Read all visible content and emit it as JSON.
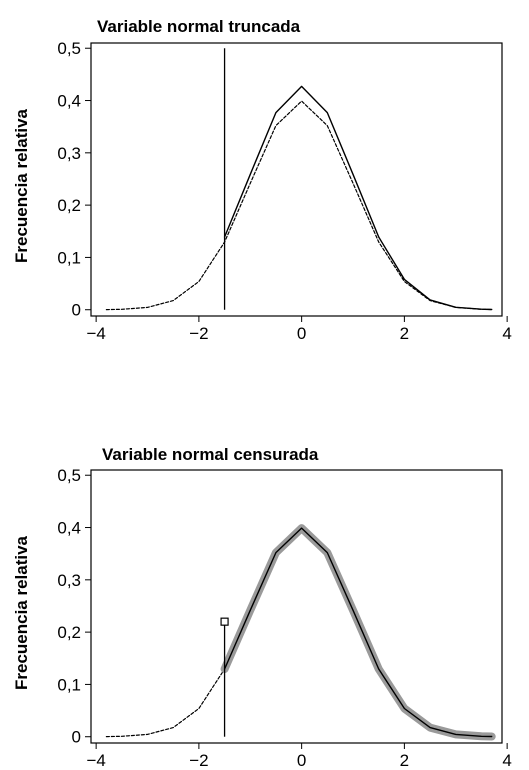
{
  "chart_data": [
    {
      "type": "line",
      "title": "Variable normal truncada",
      "ylabel": "Frecuencia relativa",
      "xlabel": "",
      "xlim": [
        -4.1,
        3.9
      ],
      "ylim": [
        -0.012,
        0.51
      ],
      "x_ticks": [
        -4,
        -2,
        0,
        2,
        4
      ],
      "x_tick_labels": [
        "−4",
        "−2",
        "0",
        "2",
        "4"
      ],
      "y_ticks": [
        0,
        0.1,
        0.2,
        0.3,
        0.4,
        0.5
      ],
      "y_tick_labels": [
        "0",
        "0,1",
        "0,2",
        "0,3",
        "0,4",
        "0,5"
      ],
      "truncation_point": -1.5,
      "series": [
        {
          "style": "dashed",
          "x": [
            -3.8,
            -3.5,
            -3.0,
            -2.5,
            -2.0,
            -1.5,
            -1.0,
            -0.5,
            0.0,
            0.5,
            1.0,
            1.5,
            2.0,
            2.5,
            3.0,
            3.5,
            3.7
          ],
          "y": [
            0.0003,
            0.0009,
            0.0044,
            0.0175,
            0.054,
            0.1295,
            0.242,
            0.352,
            0.3989,
            0.352,
            0.242,
            0.1295,
            0.054,
            0.0175,
            0.0044,
            0.0009,
            0.0004
          ]
        },
        {
          "style": "solid",
          "x": [
            -1.5,
            -1.0,
            -0.5,
            0.0,
            0.5,
            1.0,
            1.5,
            2.0,
            2.5,
            3.0,
            3.5,
            3.7
          ],
          "y": [
            0.139,
            0.259,
            0.377,
            0.427,
            0.377,
            0.259,
            0.139,
            0.058,
            0.0188,
            0.0047,
            0.001,
            0.0004
          ]
        }
      ],
      "vertical_line": {
        "x": -1.5,
        "y_from": 0,
        "y_to": 0.5
      }
    },
    {
      "type": "line",
      "title": "Variable normal censurada",
      "ylabel": "Frecuencia relativa",
      "xlabel": "",
      "xlim": [
        -4.1,
        3.9
      ],
      "ylim": [
        -0.012,
        0.51
      ],
      "x_ticks": [
        -4,
        -2,
        0,
        2,
        4
      ],
      "x_tick_labels": [
        "−4",
        "−2",
        "0",
        "2",
        "4"
      ],
      "y_ticks": [
        0,
        0.1,
        0.2,
        0.3,
        0.4,
        0.5
      ],
      "y_tick_labels": [
        "0",
        "0,1",
        "0,2",
        "0,3",
        "0,4",
        "0,5"
      ],
      "censoring_point": -1.5,
      "censored_mass": 0.22,
      "series": [
        {
          "style": "dashed",
          "x": [
            -3.8,
            -3.5,
            -3.0,
            -2.5,
            -2.0,
            -1.5
          ],
          "y": [
            0.0003,
            0.0009,
            0.0044,
            0.0175,
            0.054,
            0.1295
          ]
        },
        {
          "style": "gray band",
          "x": [
            -1.5,
            -1.0,
            -0.5,
            0.0,
            0.5,
            1.0,
            1.5,
            2.0,
            2.5,
            3.0,
            3.5,
            3.7
          ],
          "y": [
            0.1295,
            0.242,
            0.352,
            0.3989,
            0.352,
            0.242,
            0.1295,
            0.054,
            0.0175,
            0.0044,
            0.0009,
            0.0004
          ]
        },
        {
          "style": "solid",
          "x": [
            -1.5,
            -1.0,
            -0.5,
            0.0,
            0.5,
            1.0,
            1.5,
            2.0,
            2.5,
            3.0,
            3.5,
            3.7
          ],
          "y": [
            0.1295,
            0.242,
            0.352,
            0.3989,
            0.352,
            0.242,
            0.1295,
            0.054,
            0.0175,
            0.0044,
            0.0009,
            0.0004
          ]
        }
      ],
      "vertical_line": {
        "x": -1.5,
        "y_from": 0,
        "y_to": 0.22
      }
    }
  ]
}
